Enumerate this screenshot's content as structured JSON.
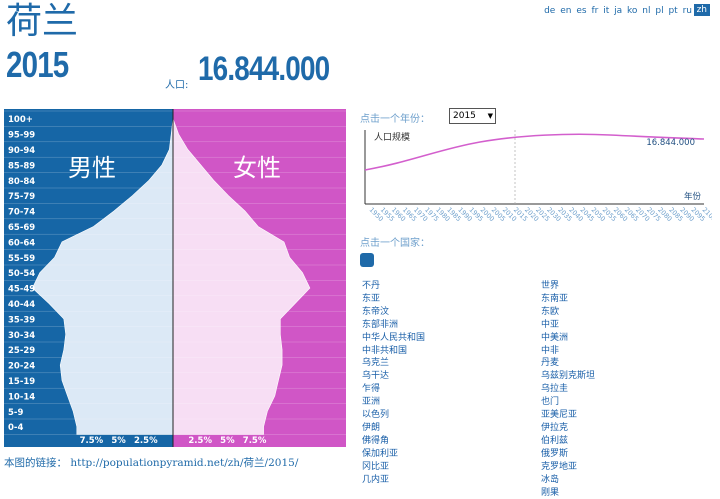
{
  "header": {
    "country": "荷兰",
    "year": "2015",
    "population_label": "人口:",
    "population_value": "16.844.000"
  },
  "languages": {
    "items": [
      "de",
      "en",
      "es",
      "fr",
      "it",
      "ja",
      "ko",
      "nl",
      "pl",
      "pt",
      "ru"
    ],
    "active": "zh"
  },
  "pyramid": {
    "male_label": "男性",
    "female_label": "女性",
    "male_color": "#1666a6",
    "female_color": "#d056c6",
    "male_fill": "#dce9f6",
    "female_fill": "#f7def4",
    "age_groups": [
      "100+",
      "95-99",
      "90-94",
      "85-89",
      "80-84",
      "75-79",
      "70-74",
      "65-69",
      "60-64",
      "55-59",
      "50-54",
      "45-49",
      "40-44",
      "35-39",
      "30-34",
      "25-29",
      "20-24",
      "15-19",
      "10-14",
      "5-9",
      "0-4"
    ],
    "male_percent": [
      0.0,
      0.1,
      0.2,
      0.6,
      1.3,
      2.2,
      3.2,
      4.3,
      6.0,
      6.4,
      7.2,
      7.6,
      6.7,
      5.9,
      5.8,
      5.9,
      6.1,
      6.0,
      5.7,
      5.4,
      5.2
    ],
    "female_percent": [
      0.0,
      0.3,
      0.8,
      1.5,
      2.2,
      3.0,
      3.9,
      4.6,
      6.0,
      6.3,
      7.0,
      7.4,
      6.6,
      5.8,
      5.8,
      5.9,
      5.9,
      5.7,
      5.5,
      5.1,
      4.9
    ],
    "axis_ticks": [
      "7.5%",
      "5%",
      "2.5%",
      "2.5%",
      "5%",
      "7.5%"
    ]
  },
  "year_selector": {
    "prompt": "点击一个年份：",
    "selected": "2015"
  },
  "trend_chart": {
    "title": "人口规模",
    "current_label": "16.844.000",
    "x_axis_label": "年份",
    "years": [
      "1950",
      "1955",
      "1960",
      "1965",
      "1970",
      "1975",
      "1980",
      "1985",
      "1990",
      "1995",
      "2000",
      "2005",
      "2010",
      "2015",
      "2020",
      "2025",
      "2030",
      "2035",
      "2040",
      "2045",
      "2050",
      "2055",
      "2060",
      "2065",
      "2070",
      "2075",
      "2080",
      "2085",
      "2090",
      "2095",
      "2100"
    ],
    "line_color": "#d35fcd"
  },
  "country_selector": {
    "prompt": "点击一个国家：",
    "col1": [
      "不丹",
      "东亚",
      "东帝汶",
      "东部非洲",
      "中华人民共和国",
      "中非共和国",
      "乌克兰",
      "乌干达",
      "乍得",
      "亚洲",
      "以色列",
      "伊朗",
      "佛得角",
      "保加利亚",
      "冈比亚",
      "几内亚"
    ],
    "col2": [
      "世界",
      "东南亚",
      "东欧",
      "中亚",
      "中美洲",
      "中非",
      "丹麦",
      "乌兹别克斯坦",
      "乌拉圭",
      "也门",
      "亚美尼亚",
      "伊拉克",
      "伯利兹",
      "俄罗斯",
      "克罗地亚",
      "冰岛",
      "刚果"
    ]
  },
  "footer": {
    "link_label": "本图的链接：",
    "url": "http://populationpyramid.net/zh/荷兰/2015/"
  }
}
